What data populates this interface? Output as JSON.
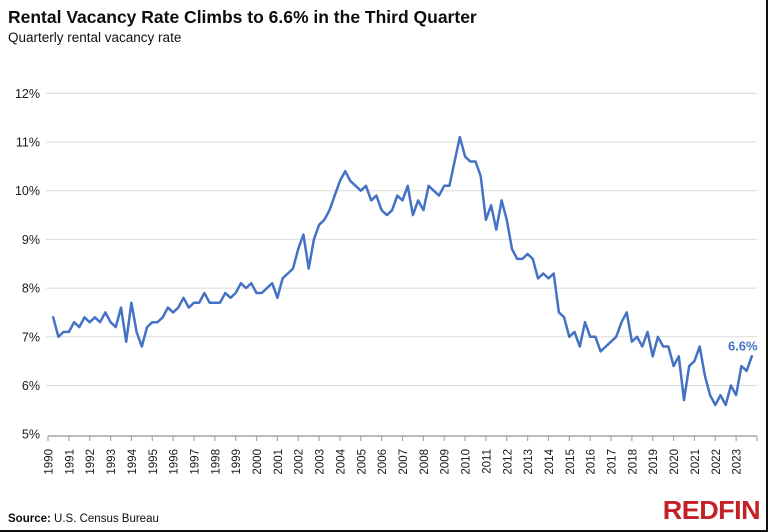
{
  "header": {
    "title": "Rental Vacancy Rate Climbs to 6.6% in the Third Quarter",
    "subtitle": "Quarterly rental vacancy rate"
  },
  "footer": {
    "source_label": "Source:",
    "source_text": "U.S. Census Bureau",
    "brand": "REDFIN"
  },
  "colors": {
    "line": "#4472C4",
    "end_label": "#4472C4",
    "gridline": "#dcdcdc",
    "axis": "#a6a6a6",
    "tick_text": "#1a1a1a",
    "brand_red": "#c32127"
  },
  "chart_data": {
    "type": "line",
    "title": "Rental Vacancy Rate Climbs to 6.6% in the Third Quarter",
    "subtitle": "Quarterly rental vacancy rate",
    "xlabel": "",
    "ylabel": "",
    "grid": true,
    "legend": "none",
    "ylim": [
      5,
      12
    ],
    "y_ticks": [
      {
        "value": 12,
        "label": "12%"
      },
      {
        "value": 11,
        "label": "11%"
      },
      {
        "value": 10,
        "label": "10%"
      },
      {
        "value": 9,
        "label": "9%"
      },
      {
        "value": 8,
        "label": "8%"
      },
      {
        "value": 7,
        "label": "7%"
      },
      {
        "value": 6,
        "label": "6%"
      },
      {
        "value": 5,
        "label": "5%"
      }
    ],
    "categories": [
      "1990",
      "1991",
      "1992",
      "1993",
      "1994",
      "1995",
      "1996",
      "1997",
      "1998",
      "1999",
      "2000",
      "2001",
      "2002",
      "2003",
      "2004",
      "2005",
      "2006",
      "2007",
      "2008",
      "2009",
      "2010",
      "2011",
      "2012",
      "2013",
      "2014",
      "2015",
      "2016",
      "2017",
      "2018",
      "2019",
      "2020",
      "2021",
      "2022",
      "2023"
    ],
    "points_per_category": 4,
    "end_label": "6.6%",
    "series": [
      {
        "name": "Quarterly rental vacancy rate",
        "start": "1990 Q1",
        "end": "2023 Q3",
        "values": [
          7.4,
          7.0,
          7.1,
          7.1,
          7.3,
          7.2,
          7.4,
          7.3,
          7.4,
          7.3,
          7.5,
          7.3,
          7.2,
          7.6,
          6.9,
          7.7,
          7.1,
          6.8,
          7.2,
          7.3,
          7.3,
          7.4,
          7.6,
          7.5,
          7.6,
          7.8,
          7.6,
          7.7,
          7.7,
          7.9,
          7.7,
          7.7,
          7.7,
          7.9,
          7.8,
          7.9,
          8.1,
          8.0,
          8.1,
          7.9,
          7.9,
          8.0,
          8.1,
          7.8,
          8.2,
          8.3,
          8.4,
          8.8,
          9.1,
          8.4,
          9.0,
          9.3,
          9.4,
          9.6,
          9.9,
          10.2,
          10.4,
          10.2,
          10.1,
          10.0,
          10.1,
          9.8,
          9.9,
          9.6,
          9.5,
          9.6,
          9.9,
          9.8,
          10.1,
          9.5,
          9.8,
          9.6,
          10.1,
          10.0,
          9.9,
          10.1,
          10.1,
          10.6,
          11.1,
          10.7,
          10.6,
          10.6,
          10.3,
          9.4,
          9.7,
          9.2,
          9.8,
          9.4,
          8.8,
          8.6,
          8.6,
          8.7,
          8.6,
          8.2,
          8.3,
          8.2,
          8.3,
          7.5,
          7.4,
          7.0,
          7.1,
          6.8,
          7.3,
          7.0,
          7.0,
          6.7,
          6.8,
          6.9,
          7.0,
          7.3,
          7.5,
          6.9,
          7.0,
          6.8,
          7.1,
          6.6,
          7.0,
          6.8,
          6.8,
          6.4,
          6.6,
          5.7,
          6.4,
          6.5,
          6.8,
          6.2,
          5.8,
          5.6,
          5.8,
          5.6,
          6.0,
          5.8,
          6.4,
          6.3,
          6.6
        ]
      }
    ]
  }
}
